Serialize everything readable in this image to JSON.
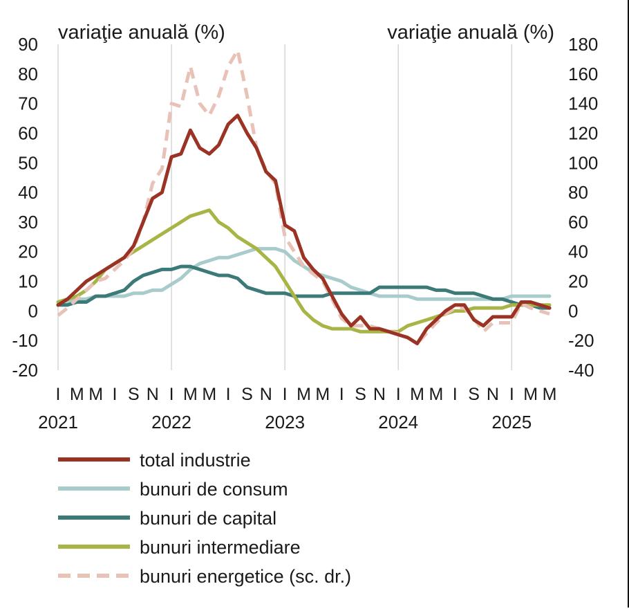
{
  "chart_data": {
    "type": "line",
    "y_left_title": "variaţie anuală (%)",
    "y_right_title": "variaţie anuală (%)",
    "y_left_ticks": [
      "90",
      "80",
      "70",
      "60",
      "50",
      "40",
      "30",
      "20",
      "10",
      "0",
      "-10",
      "-20"
    ],
    "y_right_ticks": [
      "180",
      "160",
      "140",
      "120",
      "100",
      "80",
      "60",
      "40",
      "20",
      "0",
      "-20",
      "-40"
    ],
    "ylim_left": [
      -20,
      90
    ],
    "ylim_right": [
      -40,
      180
    ],
    "x_start": "2021-01",
    "x_end": "2025-05",
    "month_ticks": [
      "I",
      "M",
      "M",
      "I",
      "S",
      "N",
      "I",
      "M",
      "M",
      "I",
      "S",
      "N",
      "I",
      "M",
      "M",
      "I",
      "S",
      "N",
      "I",
      "M",
      "M",
      "I",
      "S",
      "N",
      "I",
      "M",
      "M"
    ],
    "years": [
      "2021",
      "2022",
      "2023",
      "2024",
      "2025"
    ],
    "grid": "vertical lines at January of each year",
    "series": [
      {
        "name": "total industrie",
        "color": "#9a3324",
        "axis": "left",
        "style": "solid",
        "values": [
          2,
          4,
          7,
          10,
          12,
          14,
          16,
          18,
          22,
          30,
          38,
          40,
          52,
          53,
          61,
          55,
          53,
          56,
          63,
          66,
          60,
          55,
          47,
          44,
          29,
          27,
          18,
          14,
          11,
          5,
          -1,
          -5,
          -2,
          -6,
          -6,
          -7,
          -8,
          -9,
          -11,
          -6,
          -3,
          0,
          2,
          2,
          -3,
          -5,
          -2,
          -2,
          -2,
          3,
          3,
          2,
          1
        ]
      },
      {
        "name": "bunuri de consum",
        "color": "#a8cccb",
        "axis": "left",
        "style": "solid",
        "values": [
          3,
          3,
          4,
          4,
          5,
          5,
          5,
          5,
          6,
          6,
          7,
          7,
          9,
          11,
          14,
          16,
          17,
          18,
          18,
          19,
          20,
          21,
          21,
          21,
          20,
          17,
          15,
          13,
          12,
          11,
          10,
          8,
          7,
          6,
          5,
          5,
          5,
          5,
          4,
          4,
          4,
          4,
          4,
          4,
          4,
          4,
          4,
          4,
          5,
          5,
          5,
          5,
          5
        ]
      },
      {
        "name": "bunuri de capital",
        "color": "#3c7a77",
        "axis": "left",
        "style": "solid",
        "values": [
          2,
          2,
          3,
          3,
          5,
          5,
          6,
          7,
          10,
          12,
          13,
          14,
          14,
          15,
          15,
          14,
          13,
          12,
          12,
          11,
          8,
          7,
          6,
          6,
          6,
          5,
          5,
          5,
          5,
          6,
          6,
          6,
          6,
          6,
          8,
          8,
          8,
          8,
          8,
          8,
          7,
          7,
          6,
          6,
          6,
          5,
          4,
          4,
          3,
          2,
          2,
          1,
          1
        ]
      },
      {
        "name": "bunuri intermediare",
        "color": "#a9b447",
        "axis": "left",
        "style": "solid",
        "values": [
          3,
          4,
          5,
          7,
          10,
          14,
          16,
          18,
          20,
          22,
          24,
          26,
          28,
          30,
          32,
          33,
          34,
          30,
          28,
          25,
          23,
          21,
          18,
          15,
          10,
          5,
          0,
          -3,
          -5,
          -6,
          -6,
          -6,
          -7,
          -7,
          -7,
          -7,
          -7,
          -5,
          -4,
          -3,
          -2,
          -1,
          0,
          0,
          1,
          1,
          1,
          1,
          2,
          2,
          2,
          2,
          2
        ]
      },
      {
        "name": "bunuri energetice (sc. dr.)",
        "color": "#e8c2b6",
        "axis": "right",
        "style": "dashed",
        "values": [
          -3,
          2,
          8,
          14,
          20,
          22,
          28,
          34,
          42,
          60,
          86,
          96,
          140,
          138,
          165,
          140,
          132,
          145,
          165,
          176,
          145,
          110,
          95,
          86,
          50,
          40,
          30,
          25,
          20,
          8,
          -5,
          -10,
          -10,
          -10,
          -12,
          -14,
          -15,
          -18,
          -22,
          -15,
          -8,
          -2,
          2,
          2,
          -5,
          -14,
          -8,
          -8,
          -8,
          5,
          2,
          0,
          -2
        ]
      }
    ]
  }
}
